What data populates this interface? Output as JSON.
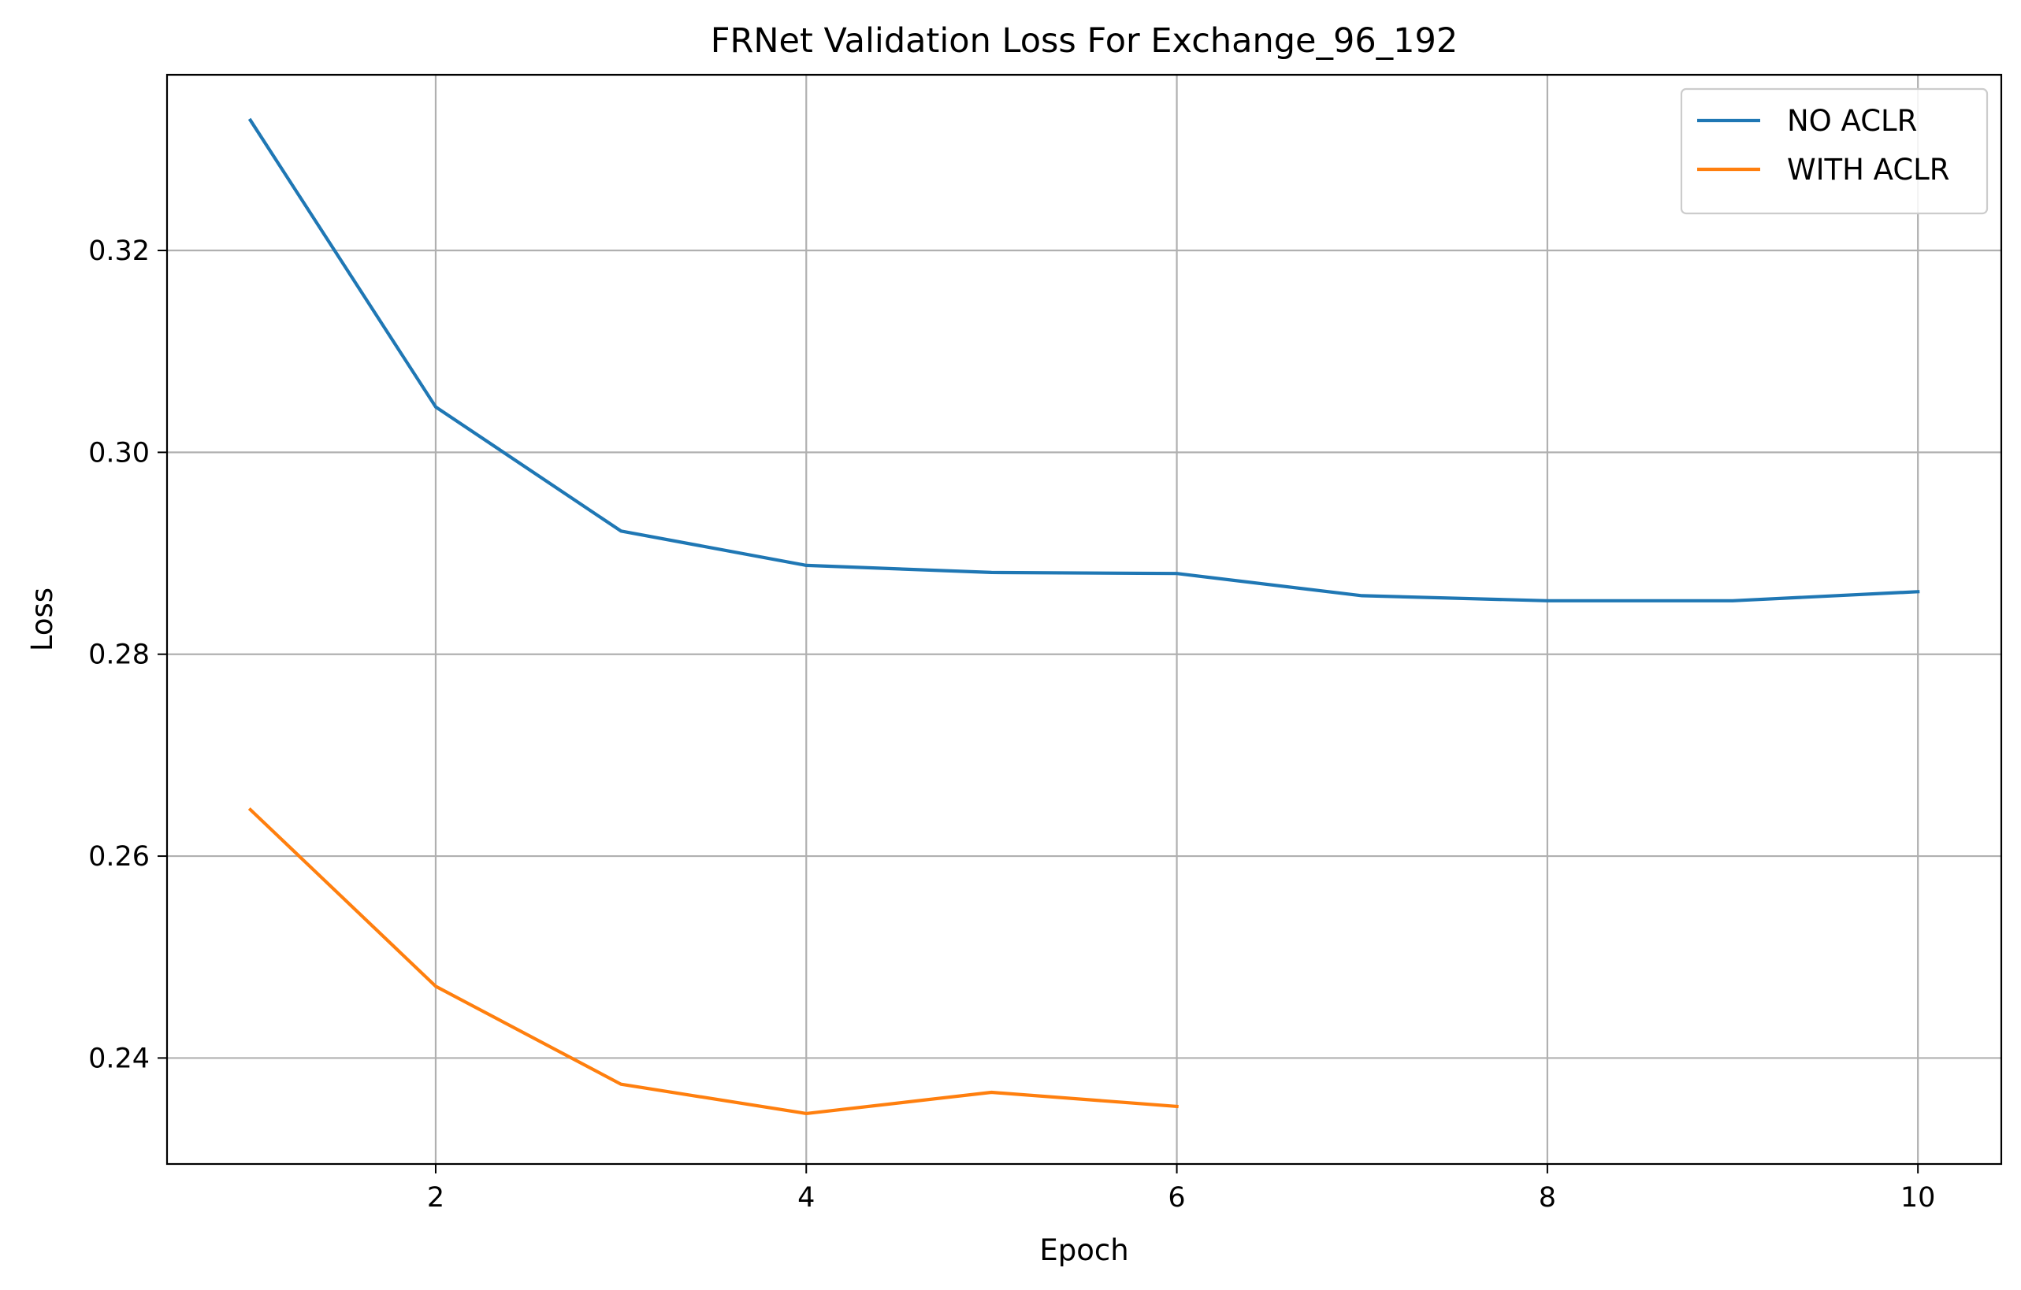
{
  "chart_data": {
    "type": "line",
    "title": "FRNet Validation Loss For Exchange_96_192",
    "xlabel": "Epoch",
    "ylabel": "Loss",
    "xlim": [
      0.55,
      10.45
    ],
    "ylim": [
      0.2295,
      0.3374
    ],
    "xticks": [
      2,
      4,
      6,
      8,
      10
    ],
    "yticks": [
      0.24,
      0.26,
      0.28,
      0.3,
      0.32
    ],
    "grid": true,
    "legend_position": "top-right",
    "series": [
      {
        "name": "NO ACLR",
        "color": "#1f77b4",
        "x": [
          1,
          2,
          3,
          4,
          5,
          6,
          7,
          8,
          9,
          10
        ],
        "y": [
          0.3329,
          0.3045,
          0.2922,
          0.2888,
          0.2881,
          0.288,
          0.2858,
          0.2853,
          0.2853,
          0.2862
        ]
      },
      {
        "name": "WITH ACLR",
        "color": "#ff7f0e",
        "x": [
          1,
          2,
          3,
          4,
          5,
          6
        ],
        "y": [
          0.2646,
          0.2471,
          0.2374,
          0.2345,
          0.2366,
          0.2352
        ]
      }
    ]
  }
}
